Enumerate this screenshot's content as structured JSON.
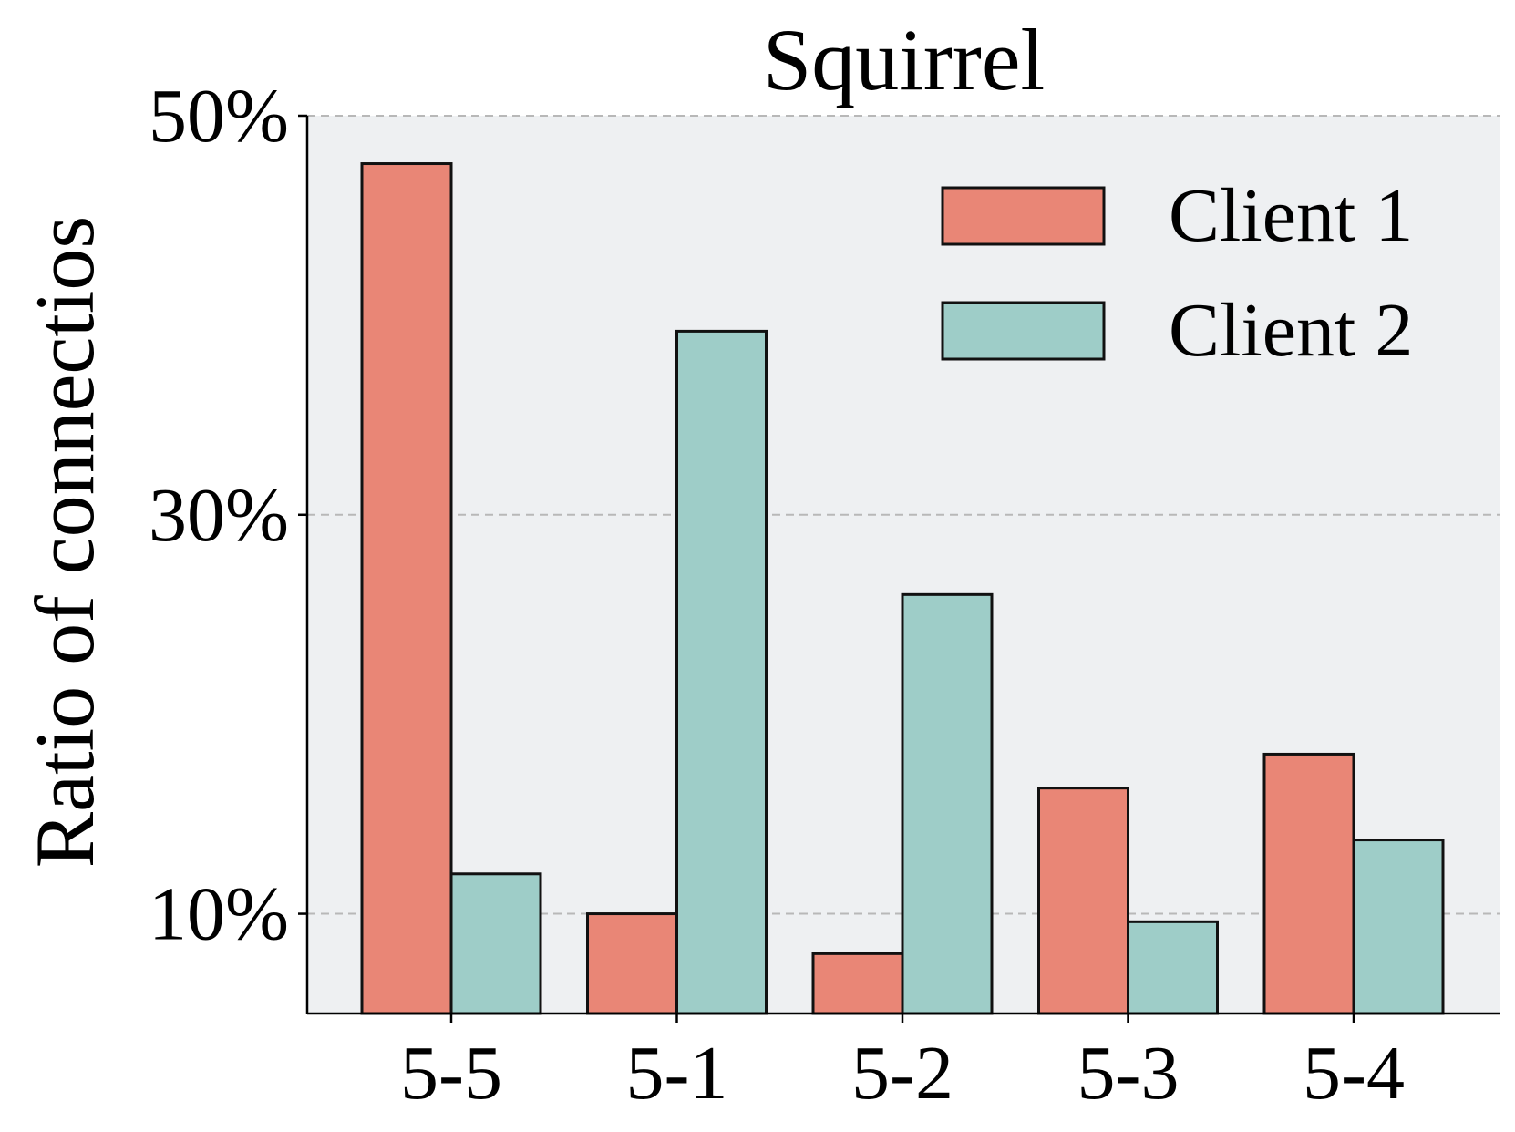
{
  "chart_data": {
    "type": "bar",
    "title": "Squirrel",
    "xlabel": "",
    "ylabel": "Ratio of connectios",
    "categories": [
      "5-5",
      "5-1",
      "5-2",
      "5-3",
      "5-4"
    ],
    "series": [
      {
        "name": "Client 1",
        "values": [
          47.6,
          10.0,
          8.0,
          16.3,
          18.0
        ]
      },
      {
        "name": "Client 2",
        "values": [
          12.0,
          39.2,
          26.0,
          9.6,
          13.7
        ]
      }
    ],
    "yticks": [
      10,
      30,
      50
    ],
    "ytick_labels": [
      "10%",
      "30%",
      "50%"
    ],
    "ylim": [
      5,
      50
    ],
    "grid": "y-dashed",
    "legend_position": "top-right",
    "colors": {
      "Client 1": "#e98676",
      "Client 2": "#9ecdc8",
      "plot_background": "#eef0f2",
      "grid": "#b8b8b8",
      "edge": "#111111"
    }
  }
}
